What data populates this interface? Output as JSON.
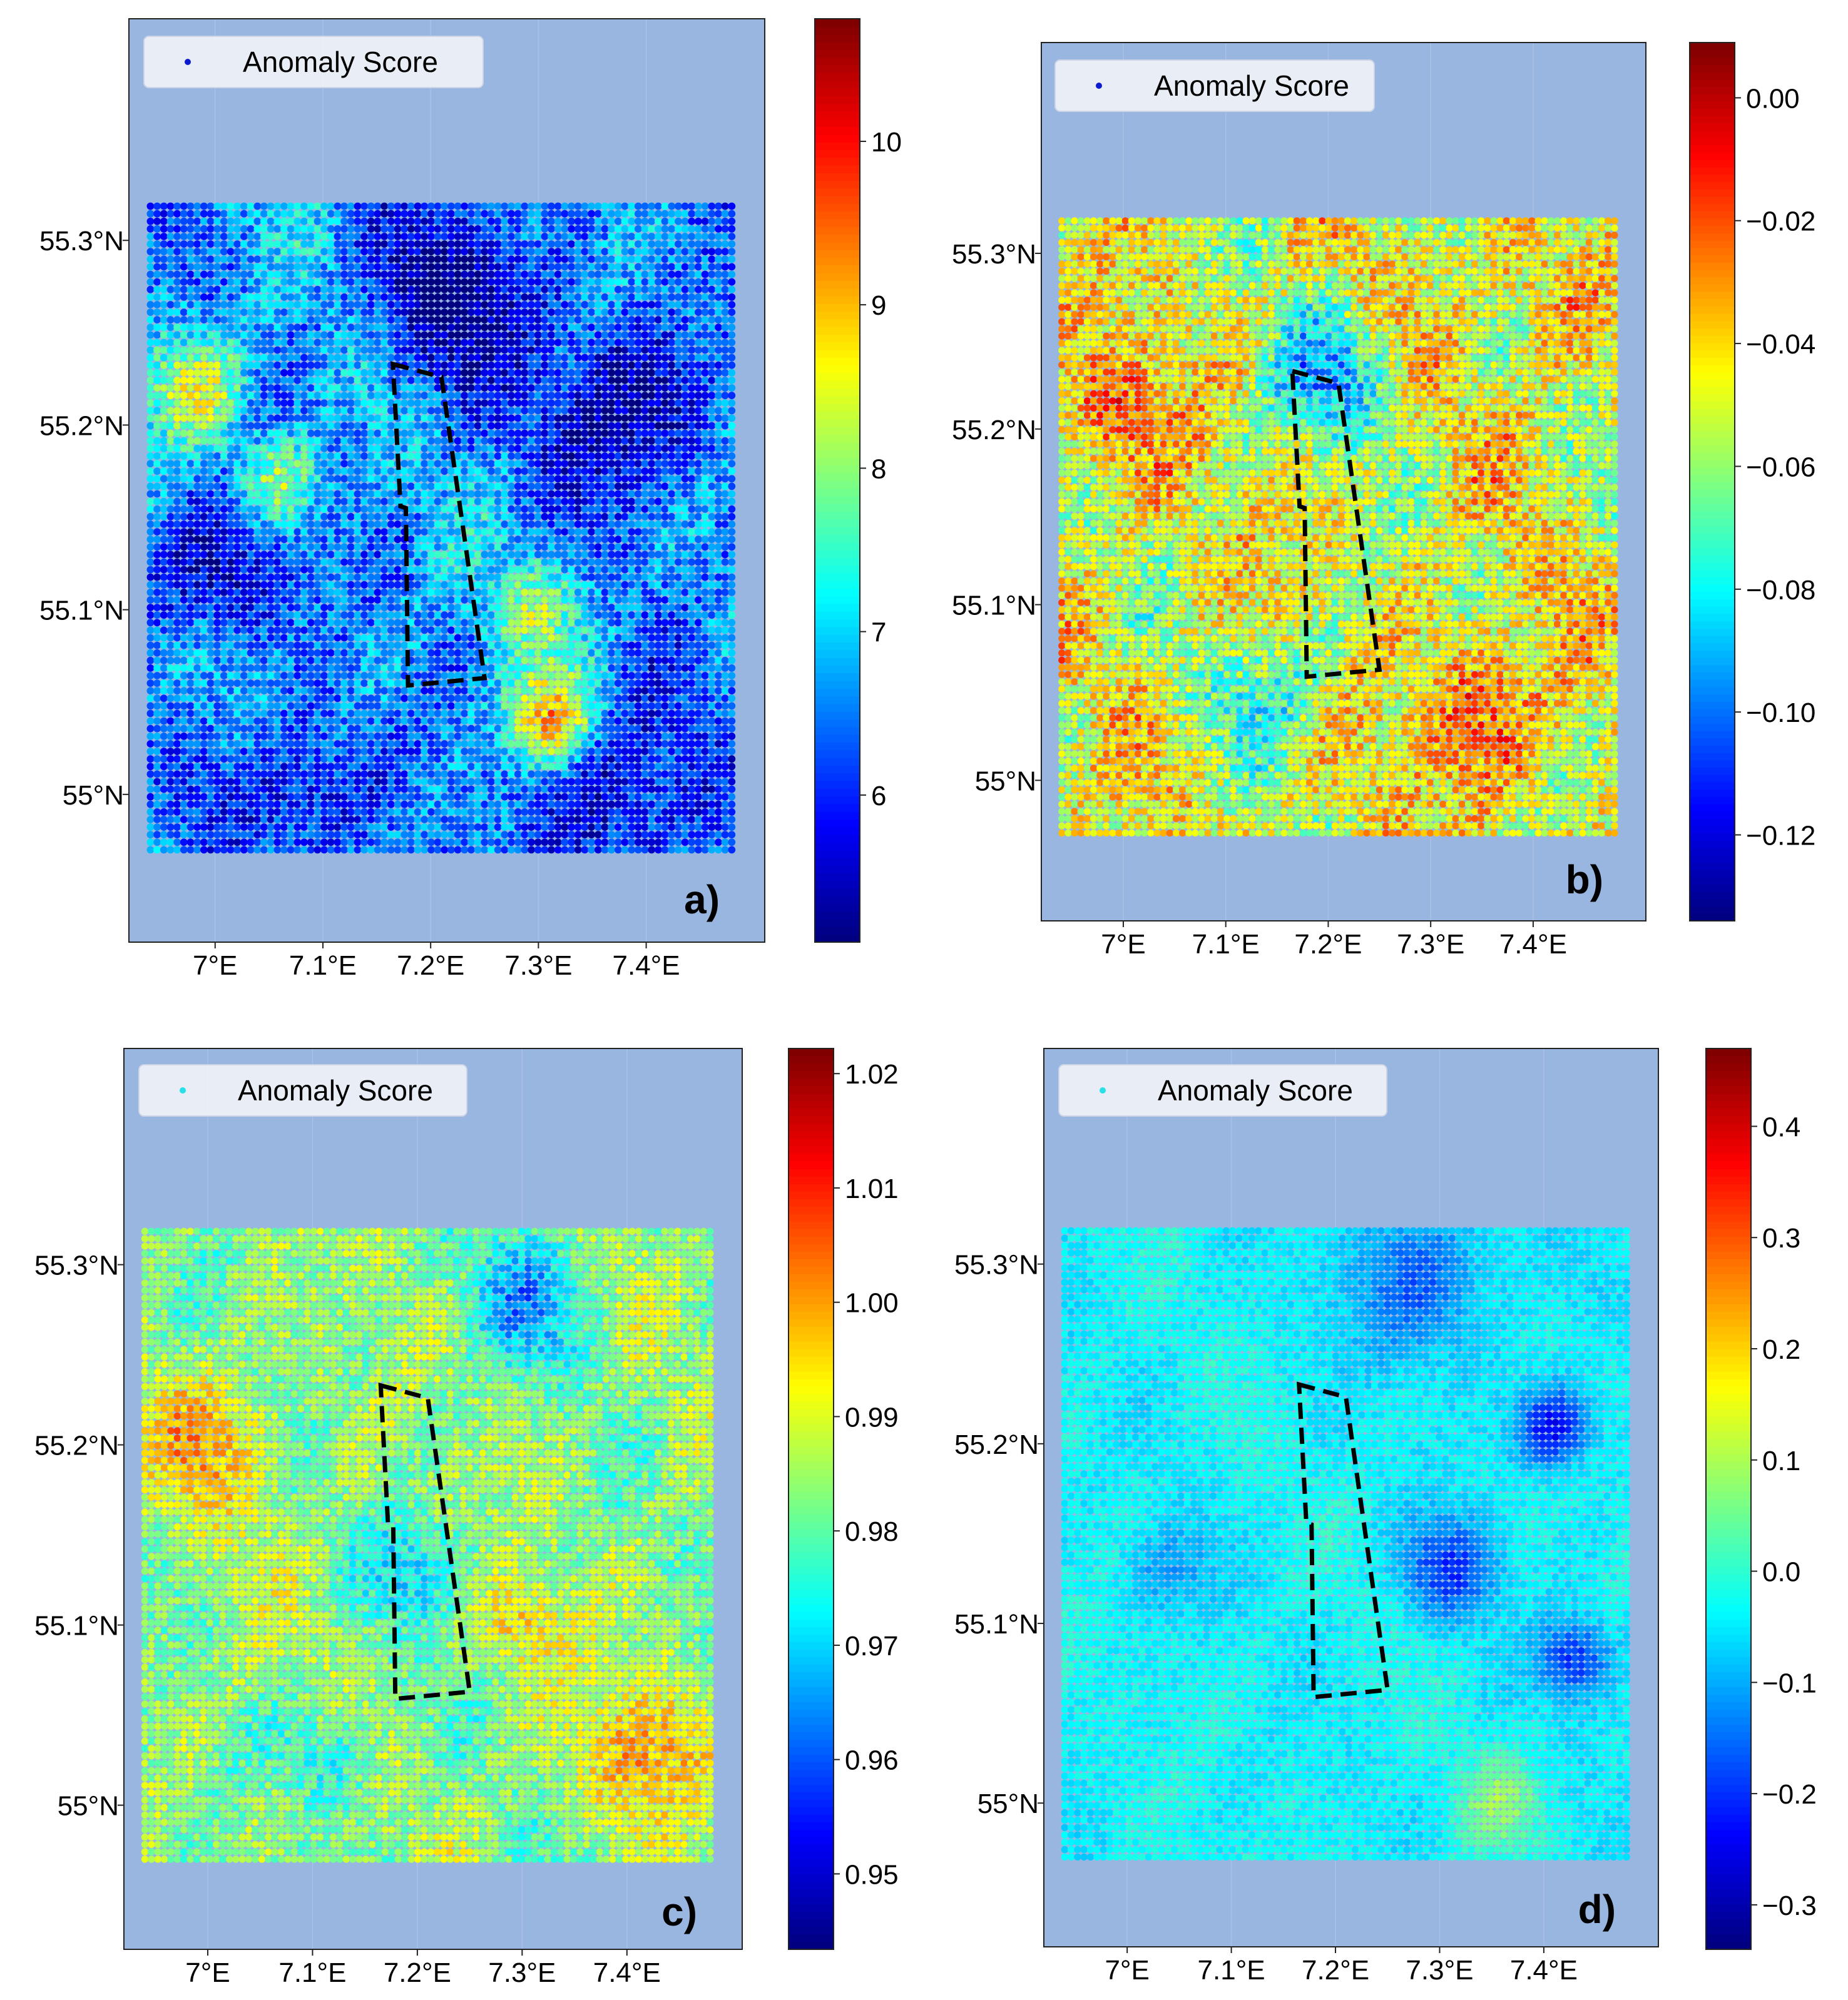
{
  "figure": {
    "plot_bg": "#99b6e0",
    "boundary_color": "#000000",
    "colormap": "jet"
  },
  "chart_data": [
    {
      "type": "scatter",
      "panel_label": "a)",
      "legend": "Anomaly Score",
      "legend_marker_color": "#0b1bd0",
      "xlim": [
        6.92,
        7.51
      ],
      "ylim": [
        54.92,
        55.42
      ],
      "xticks": [
        "7°E",
        "7.1°E",
        "7.2°E",
        "7.3°E",
        "7.4°E"
      ],
      "xtick_values": [
        7.0,
        7.1,
        7.2,
        7.3,
        7.4
      ],
      "yticks": [
        "55°N",
        "55.1°N",
        "55.2°N",
        "55.3°N"
      ],
      "ytick_values": [
        55.0,
        55.1,
        55.2,
        55.3
      ],
      "data_extent": {
        "lon": [
          6.94,
          7.48
        ],
        "lat": [
          54.97,
          55.32
        ]
      },
      "colorbar": {
        "min": 5.1,
        "max": 10.75,
        "ticks": [
          6,
          7,
          8,
          9,
          10
        ],
        "tick_labels": [
          "6",
          "7",
          "8",
          "9",
          "10"
        ]
      },
      "field": {
        "base": 6.6,
        "noise": 1.1,
        "blobs": [
          {
            "lon": 7.22,
            "lat": 55.27,
            "amp": -1.6,
            "r": 0.07
          },
          {
            "lon": 7.38,
            "lat": 55.21,
            "amp": -1.4,
            "r": 0.08
          },
          {
            "lon": 7.0,
            "lat": 55.12,
            "amp": -1.3,
            "r": 0.06
          },
          {
            "lon": 7.08,
            "lat": 55.0,
            "amp": -1.2,
            "r": 0.06
          },
          {
            "lon": 7.38,
            "lat": 55.0,
            "amp": -1.2,
            "r": 0.08
          },
          {
            "lon": 7.31,
            "lat": 55.04,
            "amp": 2.6,
            "r": 0.04
          },
          {
            "lon": 6.98,
            "lat": 55.22,
            "amp": 1.8,
            "r": 0.05
          },
          {
            "lon": 7.06,
            "lat": 55.17,
            "amp": 1.5,
            "r": 0.04
          },
          {
            "lon": 7.3,
            "lat": 55.1,
            "amp": 1.2,
            "r": 0.05
          }
        ]
      },
      "boundary": [
        [
          7.165,
          55.233
        ],
        [
          7.21,
          55.226
        ],
        [
          7.25,
          55.063
        ],
        [
          7.179,
          55.059
        ],
        [
          7.177,
          55.155
        ],
        [
          7.172,
          55.156
        ]
      ]
    },
    {
      "type": "scatter",
      "panel_label": "b)",
      "legend": "Anomaly Score",
      "legend_marker_color": "#0b1bd0",
      "xlim": [
        6.92,
        7.51
      ],
      "ylim": [
        54.92,
        55.42
      ],
      "xticks": [
        "7°E",
        "7.1°E",
        "7.2°E",
        "7.3°E",
        "7.4°E"
      ],
      "xtick_values": [
        7.0,
        7.1,
        7.2,
        7.3,
        7.4
      ],
      "yticks": [
        "55°N",
        "55.1°N",
        "55.2°N",
        "55.3°N"
      ],
      "ytick_values": [
        55.0,
        55.1,
        55.2,
        55.3
      ],
      "data_extent": {
        "lon": [
          6.94,
          7.48
        ],
        "lat": [
          54.97,
          55.32
        ]
      },
      "colorbar": {
        "min": -0.134,
        "max": 0.009,
        "ticks": [
          -0.12,
          -0.1,
          -0.08,
          -0.06,
          -0.04,
          -0.02,
          0.0
        ],
        "tick_labels": [
          "−0.12",
          "−0.10",
          "−0.08",
          "−0.06",
          "−0.04",
          "−0.02",
          "0.00"
        ]
      },
      "field": {
        "base": -0.048,
        "noise": 0.034,
        "blobs": [
          {
            "lon": 7.2,
            "lat": 55.23,
            "amp": -0.04,
            "r": 0.06
          },
          {
            "lon": 7.15,
            "lat": 55.05,
            "amp": -0.025,
            "r": 0.06
          },
          {
            "lon": 6.99,
            "lat": 55.21,
            "amp": 0.025,
            "r": 0.06
          },
          {
            "lon": 7.35,
            "lat": 55.04,
            "amp": 0.028,
            "r": 0.07
          },
          {
            "lon": 7.42,
            "lat": 55.28,
            "amp": 0.015,
            "r": 0.06
          }
        ]
      },
      "boundary": [
        [
          7.165,
          55.233
        ],
        [
          7.21,
          55.226
        ],
        [
          7.25,
          55.063
        ],
        [
          7.179,
          55.059
        ],
        [
          7.177,
          55.155
        ],
        [
          7.172,
          55.156
        ]
      ]
    },
    {
      "type": "scatter",
      "panel_label": "c)",
      "legend": "Anomaly Score",
      "legend_marker_color": "#27e0e8",
      "xlim": [
        6.92,
        7.51
      ],
      "ylim": [
        54.92,
        55.42
      ],
      "xticks": [
        "7°E",
        "7.1°E",
        "7.2°E",
        "7.3°E",
        "7.4°E"
      ],
      "xtick_values": [
        7.0,
        7.1,
        7.2,
        7.3,
        7.4
      ],
      "yticks": [
        "55°N",
        "55.1°N",
        "55.2°N",
        "55.3°N"
      ],
      "ytick_values": [
        55.0,
        55.1,
        55.2,
        55.3
      ],
      "data_extent": {
        "lon": [
          6.94,
          7.48
        ],
        "lat": [
          54.97,
          55.32
        ]
      },
      "colorbar": {
        "min": 0.9434,
        "max": 1.0222,
        "ticks": [
          0.95,
          0.96,
          0.97,
          0.98,
          0.99,
          1.0,
          1.01,
          1.02
        ],
        "tick_labels": [
          "0.95",
          "0.96",
          "0.97",
          "0.98",
          "0.99",
          "1.00",
          "1.01",
          "1.02"
        ]
      },
      "field": {
        "base": 0.984,
        "noise": 0.012,
        "blobs": [
          {
            "lon": 7.3,
            "lat": 55.28,
            "amp": -0.016,
            "r": 0.06
          },
          {
            "lon": 7.2,
            "lat": 55.13,
            "amp": -0.012,
            "r": 0.05
          },
          {
            "lon": 7.12,
            "lat": 55.03,
            "amp": -0.01,
            "r": 0.05
          },
          {
            "lon": 7.0,
            "lat": 55.2,
            "amp": 0.014,
            "r": 0.06
          },
          {
            "lon": 7.42,
            "lat": 55.03,
            "amp": 0.016,
            "r": 0.06
          },
          {
            "lon": 7.3,
            "lat": 55.1,
            "amp": 0.012,
            "r": 0.04
          }
        ]
      },
      "boundary": [
        [
          7.165,
          55.233
        ],
        [
          7.21,
          55.226
        ],
        [
          7.25,
          55.063
        ],
        [
          7.179,
          55.059
        ],
        [
          7.177,
          55.155
        ],
        [
          7.172,
          55.156
        ]
      ]
    },
    {
      "type": "scatter",
      "panel_label": "d)",
      "legend": "Anomaly Score",
      "legend_marker_color": "#27e0e8",
      "xlim": [
        6.92,
        7.51
      ],
      "ylim": [
        54.92,
        55.42
      ],
      "xticks": [
        "7°E",
        "7.1°E",
        "7.2°E",
        "7.3°E",
        "7.4°E"
      ],
      "xtick_values": [
        7.0,
        7.1,
        7.2,
        7.3,
        7.4
      ],
      "yticks": [
        "55°N",
        "55.1°N",
        "55.2°N",
        "55.3°N"
      ],
      "ytick_values": [
        55.0,
        55.1,
        55.2,
        55.3
      ],
      "data_extent": {
        "lon": [
          6.94,
          7.48
        ],
        "lat": [
          54.97,
          55.32
        ]
      },
      "colorbar": {
        "min": -0.34,
        "max": 0.47,
        "ticks": [
          -0.3,
          -0.2,
          -0.1,
          0.0,
          0.1,
          0.2,
          0.3,
          0.4
        ],
        "tick_labels": [
          "−0.3",
          "−0.2",
          "−0.1",
          "0.0",
          "0.1",
          "0.2",
          "0.3",
          "0.4"
        ]
      },
      "field": {
        "base": -0.035,
        "noise": 0.05,
        "blobs": [
          {
            "lon": 7.41,
            "lat": 55.21,
            "amp": -0.22,
            "r": 0.035
          },
          {
            "lon": 7.31,
            "lat": 55.13,
            "amp": -0.16,
            "r": 0.045
          },
          {
            "lon": 7.43,
            "lat": 55.08,
            "amp": -0.17,
            "r": 0.035
          },
          {
            "lon": 7.28,
            "lat": 55.29,
            "amp": -0.12,
            "r": 0.07
          },
          {
            "lon": 7.04,
            "lat": 55.13,
            "amp": -0.08,
            "r": 0.04
          },
          {
            "lon": 7.36,
            "lat": 55.0,
            "amp": 0.1,
            "r": 0.04
          }
        ]
      },
      "boundary": [
        [
          7.165,
          55.233
        ],
        [
          7.21,
          55.226
        ],
        [
          7.25,
          55.063
        ],
        [
          7.179,
          55.059
        ],
        [
          7.177,
          55.155
        ],
        [
          7.172,
          55.156
        ]
      ]
    }
  ]
}
